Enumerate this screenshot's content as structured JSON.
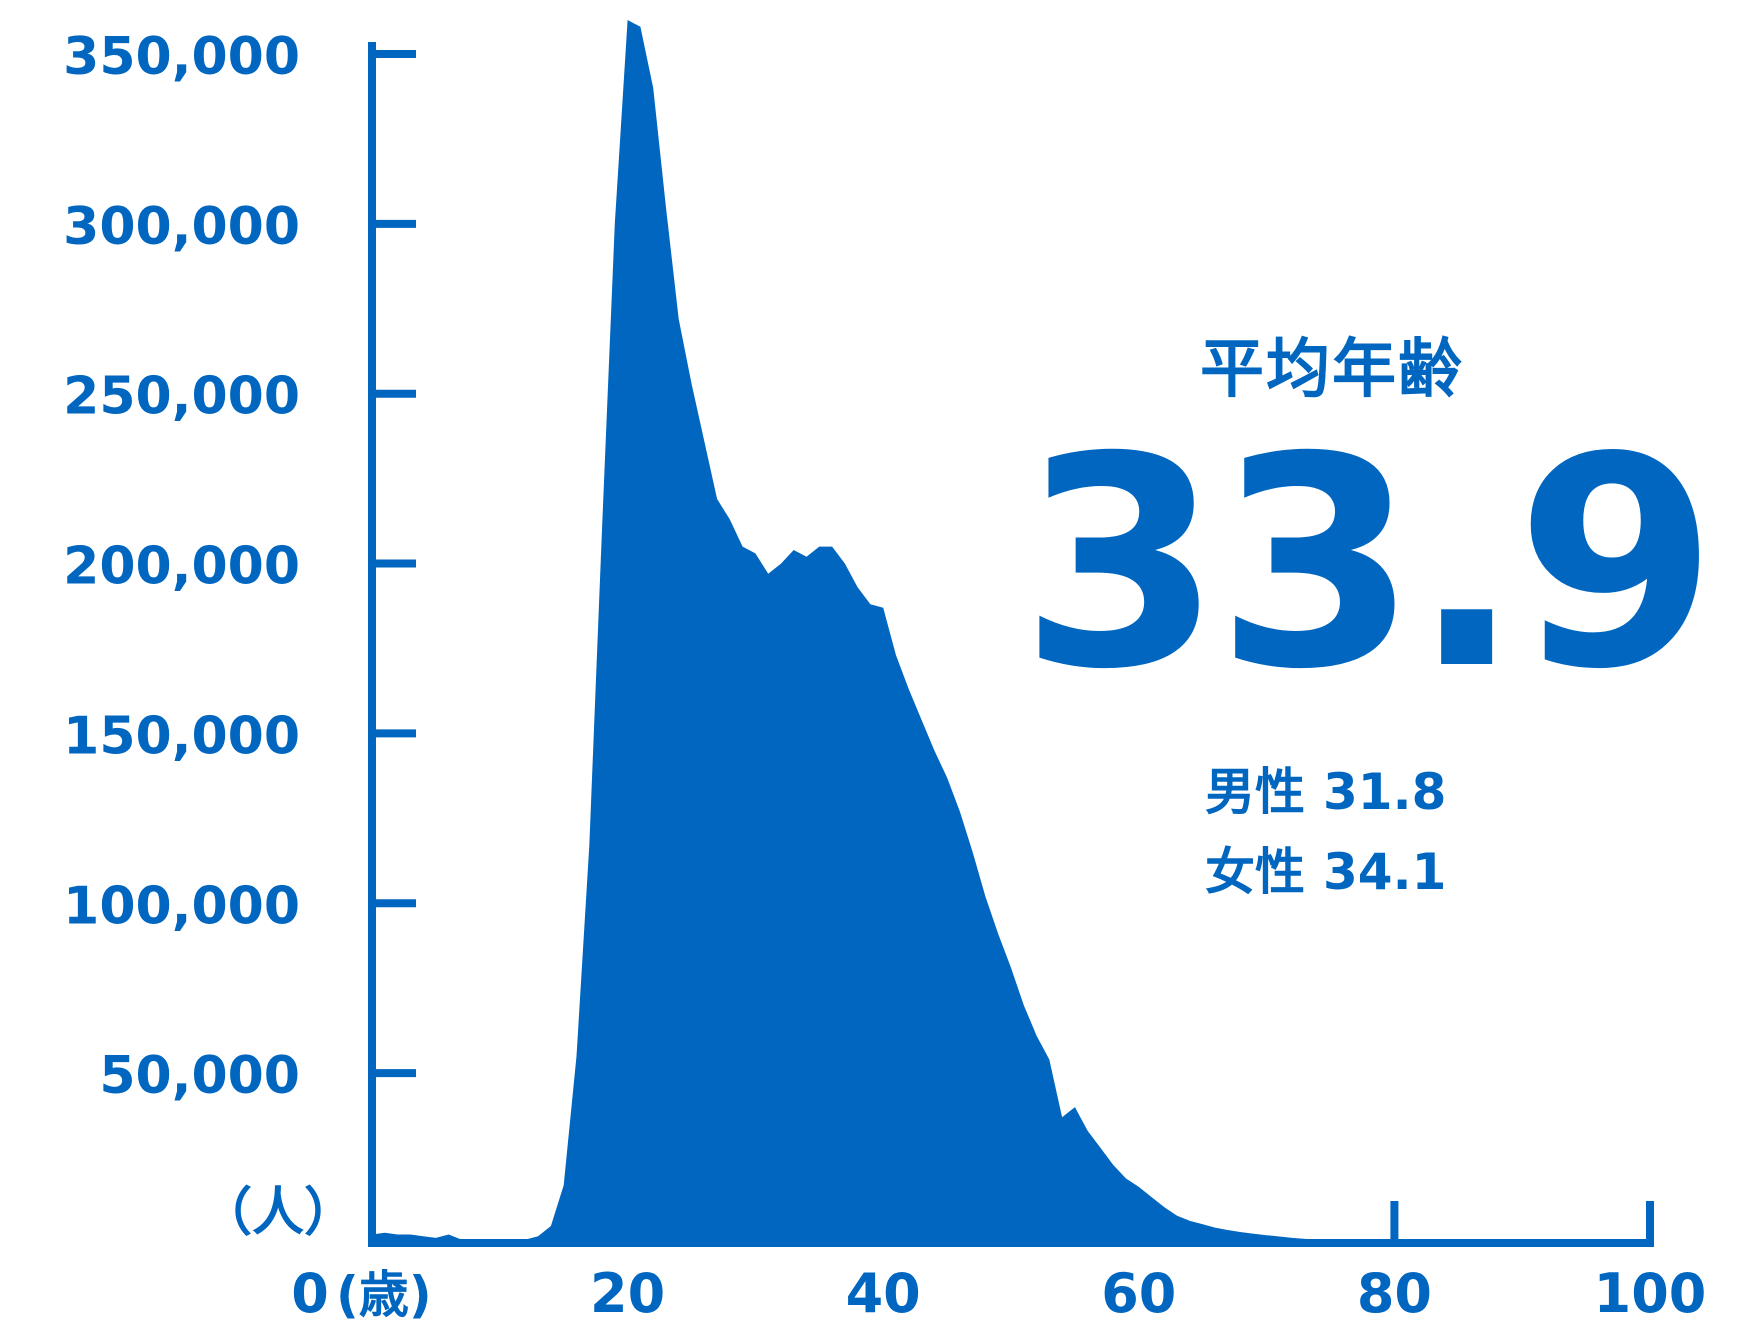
{
  "chart_data": {
    "type": "area",
    "y_unit_label": "（人）",
    "x_unit_label": "(歳)",
    "xlim": [
      0,
      100
    ],
    "ylim": [
      0,
      360000
    ],
    "x_ticks": [
      {
        "value": 0,
        "label": "0"
      },
      {
        "value": 20,
        "label": "20"
      },
      {
        "value": 40,
        "label": "40"
      },
      {
        "value": 60,
        "label": "60"
      },
      {
        "value": 80,
        "label": "80"
      },
      {
        "value": 100,
        "label": "100"
      }
    ],
    "y_ticks": [
      {
        "value": 50000,
        "label": "50,000"
      },
      {
        "value": 100000,
        "label": "100,000"
      },
      {
        "value": 150000,
        "label": "150,000"
      },
      {
        "value": 200000,
        "label": "200,000"
      },
      {
        "value": 250000,
        "label": "250,000"
      },
      {
        "value": 300000,
        "label": "300,000"
      },
      {
        "value": 350000,
        "label": "350,000"
      }
    ],
    "series_color": "#0066c0",
    "x": [
      0,
      1,
      2,
      3,
      4,
      5,
      6,
      7,
      8,
      9,
      10,
      11,
      12,
      13,
      14,
      15,
      16,
      17,
      18,
      19,
      20,
      21,
      22,
      23,
      24,
      25,
      26,
      27,
      28,
      29,
      30,
      31,
      32,
      33,
      34,
      35,
      36,
      37,
      38,
      39,
      40,
      41,
      42,
      43,
      44,
      45,
      46,
      47,
      48,
      49,
      50,
      51,
      52,
      53,
      54,
      55,
      56,
      57,
      58,
      59,
      60,
      61,
      62,
      63,
      64,
      65,
      66,
      67,
      68,
      69,
      70,
      71,
      72,
      73,
      74,
      75,
      76,
      77,
      78,
      79,
      80,
      81,
      82,
      83,
      84,
      85,
      86,
      87,
      88,
      89,
      90,
      91,
      92,
      93,
      94,
      95,
      96,
      97,
      98,
      99,
      100
    ],
    "values": [
      2500,
      3000,
      2500,
      2500,
      2000,
      1500,
      2500,
      1000,
      1000,
      1000,
      1000,
      1000,
      1000,
      2000,
      5000,
      17000,
      55000,
      117000,
      210000,
      300000,
      360000,
      358000,
      340000,
      305000,
      272000,
      253000,
      236000,
      219000,
      213000,
      205000,
      203000,
      197000,
      200000,
      204000,
      202000,
      205000,
      205000,
      200000,
      193000,
      188000,
      187000,
      173000,
      163000,
      154000,
      145000,
      137000,
      127000,
      115000,
      102000,
      91000,
      81000,
      70000,
      61000,
      54000,
      37000,
      40000,
      33000,
      28000,
      23000,
      19000,
      16500,
      13500,
      10500,
      8000,
      6500,
      5500,
      4500,
      3800,
      3200,
      2700,
      2300,
      1900,
      1500,
      1200,
      900,
      700,
      600,
      500,
      400,
      300,
      250,
      200,
      150,
      100,
      100,
      100,
      100,
      100,
      100,
      100,
      100,
      100,
      100,
      100,
      100,
      100,
      100,
      100,
      100,
      100,
      1000
    ]
  },
  "stats": {
    "average_label": "平均年齢",
    "average_value": "33.9",
    "male_label": "男性",
    "male_value": "31.8",
    "female_label": "女性",
    "female_value": "34.1"
  }
}
